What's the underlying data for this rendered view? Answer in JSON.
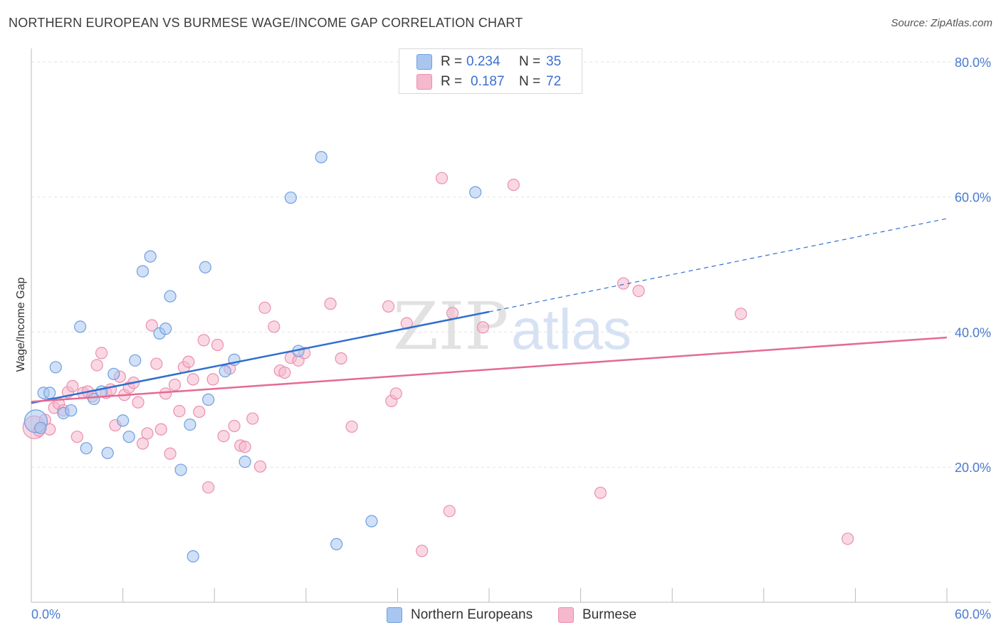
{
  "title": "NORTHERN EUROPEAN VS BURMESE WAGE/INCOME GAP CORRELATION CHART",
  "source": "Source: ZipAtlas.com",
  "watermark": {
    "zip": "ZIP",
    "atlas": "atlas"
  },
  "colors": {
    "blue_fill": "#a9c6f0",
    "blue_stroke": "#6f9fe0",
    "blue_line": "#2f6fd1",
    "pink_fill": "#f5b8cc",
    "pink_stroke": "#ea8fae",
    "pink_line": "#e46a94",
    "grid": "#e3e3e3",
    "tick_text": "#4a7bd0"
  },
  "legend_top": [
    {
      "r_label": "R =",
      "r_value": "0.234",
      "n_label": "N =",
      "n_value": "35"
    },
    {
      "r_label": "R =",
      "r_value": "0.187",
      "n_label": "N =",
      "n_value": "72"
    }
  ],
  "legend_bottom": [
    "Northern Europeans",
    "Burmese"
  ],
  "chart_data": {
    "type": "scatter",
    "title": "NORTHERN EUROPEAN VS BURMESE WAGE/INCOME GAP CORRELATION CHART",
    "xlabel": "",
    "ylabel": "Wage/Income Gap",
    "xlim": [
      0,
      60
    ],
    "ylim": [
      0,
      82
    ],
    "x_tick_labels": [
      "0.0%",
      "60.0%"
    ],
    "y_ticks": [
      20,
      40,
      60,
      80
    ],
    "y_tick_labels": [
      "20.0%",
      "40.0%",
      "60.0%",
      "80.0%"
    ],
    "grid": true,
    "legend_position": "top-center",
    "series": [
      {
        "name": "Northern Europeans",
        "R": 0.234,
        "N": 35,
        "trend": {
          "x_start": 0,
          "y_start": 29.5,
          "x_solid_end": 30,
          "y_solid_end": 43.0,
          "x_dash_end": 60,
          "y_dash_end": 56.8
        },
        "points": [
          {
            "x": 0.3,
            "y": 26.8,
            "big": true
          },
          {
            "x": 0.6,
            "y": 25.8
          },
          {
            "x": 0.8,
            "y": 31.0
          },
          {
            "x": 1.2,
            "y": 31.0
          },
          {
            "x": 1.6,
            "y": 34.8
          },
          {
            "x": 2.1,
            "y": 28.0
          },
          {
            "x": 2.6,
            "y": 28.4
          },
          {
            "x": 3.2,
            "y": 40.8
          },
          {
            "x": 3.6,
            "y": 22.8
          },
          {
            "x": 4.1,
            "y": 30.1
          },
          {
            "x": 4.6,
            "y": 31.2
          },
          {
            "x": 5.0,
            "y": 22.1
          },
          {
            "x": 5.4,
            "y": 33.8
          },
          {
            "x": 6.0,
            "y": 26.9
          },
          {
            "x": 6.4,
            "y": 24.5
          },
          {
            "x": 6.8,
            "y": 35.8
          },
          {
            "x": 7.3,
            "y": 49.0
          },
          {
            "x": 7.8,
            "y": 51.2
          },
          {
            "x": 8.4,
            "y": 39.8
          },
          {
            "x": 8.8,
            "y": 40.5
          },
          {
            "x": 9.1,
            "y": 45.3
          },
          {
            "x": 9.8,
            "y": 19.6
          },
          {
            "x": 10.4,
            "y": 26.3
          },
          {
            "x": 10.6,
            "y": 6.8
          },
          {
            "x": 11.4,
            "y": 49.6
          },
          {
            "x": 11.6,
            "y": 30.0
          },
          {
            "x": 12.7,
            "y": 34.2
          },
          {
            "x": 13.3,
            "y": 35.9
          },
          {
            "x": 14.0,
            "y": 20.8
          },
          {
            "x": 17.0,
            "y": 59.9
          },
          {
            "x": 17.5,
            "y": 37.2
          },
          {
            "x": 19.0,
            "y": 65.9
          },
          {
            "x": 20.0,
            "y": 8.6
          },
          {
            "x": 22.3,
            "y": 12.0
          },
          {
            "x": 29.1,
            "y": 60.7
          }
        ]
      },
      {
        "name": "Burmese",
        "R": 0.187,
        "N": 72,
        "trend": {
          "x_start": 0,
          "y_start": 29.7,
          "x_end": 60,
          "y_end": 39.2
        },
        "points": [
          {
            "x": 0.2,
            "y": 25.9,
            "big": true
          },
          {
            "x": 0.5,
            "y": 25.4
          },
          {
            "x": 0.9,
            "y": 27.0
          },
          {
            "x": 1.2,
            "y": 25.6
          },
          {
            "x": 1.5,
            "y": 28.8
          },
          {
            "x": 1.8,
            "y": 29.4
          },
          {
            "x": 2.1,
            "y": 28.4
          },
          {
            "x": 2.4,
            "y": 31.1
          },
          {
            "x": 2.7,
            "y": 32.0
          },
          {
            "x": 3.0,
            "y": 24.5
          },
          {
            "x": 3.4,
            "y": 31.0
          },
          {
            "x": 3.7,
            "y": 31.2
          },
          {
            "x": 4.0,
            "y": 30.5
          },
          {
            "x": 4.3,
            "y": 35.1
          },
          {
            "x": 4.6,
            "y": 36.9
          },
          {
            "x": 4.9,
            "y": 31.0
          },
          {
            "x": 5.2,
            "y": 31.5
          },
          {
            "x": 5.5,
            "y": 26.2
          },
          {
            "x": 5.8,
            "y": 33.4
          },
          {
            "x": 6.1,
            "y": 30.7
          },
          {
            "x": 6.4,
            "y": 31.8
          },
          {
            "x": 6.7,
            "y": 32.5
          },
          {
            "x": 7.0,
            "y": 29.6
          },
          {
            "x": 7.3,
            "y": 23.5
          },
          {
            "x": 7.6,
            "y": 25.0
          },
          {
            "x": 7.9,
            "y": 41.0
          },
          {
            "x": 8.2,
            "y": 35.3
          },
          {
            "x": 8.5,
            "y": 25.6
          },
          {
            "x": 8.8,
            "y": 30.9
          },
          {
            "x": 9.1,
            "y": 22.0
          },
          {
            "x": 9.4,
            "y": 32.2
          },
          {
            "x": 9.7,
            "y": 28.3
          },
          {
            "x": 10.0,
            "y": 34.8
          },
          {
            "x": 10.3,
            "y": 35.6
          },
          {
            "x": 10.6,
            "y": 33.0
          },
          {
            "x": 11.0,
            "y": 28.2
          },
          {
            "x": 11.3,
            "y": 38.8
          },
          {
            "x": 11.6,
            "y": 17.0
          },
          {
            "x": 11.9,
            "y": 33.0
          },
          {
            "x": 12.2,
            "y": 38.1
          },
          {
            "x": 12.6,
            "y": 24.6
          },
          {
            "x": 13.0,
            "y": 34.6
          },
          {
            "x": 13.3,
            "y": 26.1
          },
          {
            "x": 13.7,
            "y": 23.2
          },
          {
            "x": 14.0,
            "y": 23.0
          },
          {
            "x": 14.5,
            "y": 27.2
          },
          {
            "x": 15.0,
            "y": 20.1
          },
          {
            "x": 15.3,
            "y": 43.6
          },
          {
            "x": 15.9,
            "y": 40.8
          },
          {
            "x": 16.3,
            "y": 34.3
          },
          {
            "x": 16.6,
            "y": 34.0
          },
          {
            "x": 17.0,
            "y": 36.2
          },
          {
            "x": 17.5,
            "y": 35.8
          },
          {
            "x": 17.9,
            "y": 36.9
          },
          {
            "x": 19.6,
            "y": 44.2
          },
          {
            "x": 20.3,
            "y": 36.1
          },
          {
            "x": 21.0,
            "y": 26.0
          },
          {
            "x": 23.4,
            "y": 43.8
          },
          {
            "x": 23.6,
            "y": 29.8
          },
          {
            "x": 23.9,
            "y": 30.9
          },
          {
            "x": 24.6,
            "y": 41.3
          },
          {
            "x": 25.6,
            "y": 7.6
          },
          {
            "x": 26.9,
            "y": 62.8
          },
          {
            "x": 27.4,
            "y": 13.5
          },
          {
            "x": 27.6,
            "y": 42.8
          },
          {
            "x": 29.6,
            "y": 40.7
          },
          {
            "x": 31.6,
            "y": 61.8
          },
          {
            "x": 37.3,
            "y": 16.2
          },
          {
            "x": 38.8,
            "y": 47.2
          },
          {
            "x": 39.8,
            "y": 46.1
          },
          {
            "x": 46.5,
            "y": 42.7
          },
          {
            "x": 53.5,
            "y": 9.4
          }
        ]
      }
    ]
  }
}
